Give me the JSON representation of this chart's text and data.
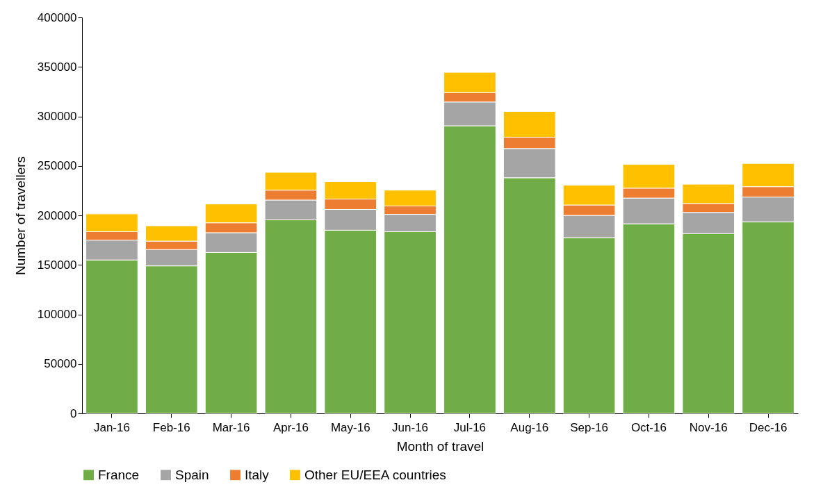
{
  "chart_data": {
    "type": "bar",
    "stacked": true,
    "xlabel": "Month of travel",
    "ylabel": "Number of travellers",
    "categories": [
      "Jan-16",
      "Feb-16",
      "Mar-16",
      "Apr-16",
      "May-16",
      "Jun-16",
      "Jul-16",
      "Aug-16",
      "Sep-16",
      "Oct-16",
      "Nov-16",
      "Dec-16"
    ],
    "series": [
      {
        "name": "France",
        "color": "#70ad47",
        "values": [
          155000,
          149000,
          162500,
          195500,
          185000,
          183500,
          290500,
          238000,
          177500,
          191500,
          181500,
          193500
        ]
      },
      {
        "name": "Spain",
        "color": "#a5a5a5",
        "values": [
          20000,
          16500,
          20000,
          20000,
          21000,
          17500,
          24000,
          29500,
          22500,
          26000,
          21500,
          25000
        ]
      },
      {
        "name": "Italy",
        "color": "#ed7d31",
        "values": [
          8500,
          8500,
          10000,
          10000,
          10500,
          8500,
          9500,
          11500,
          10500,
          10000,
          9000,
          10500
        ]
      },
      {
        "name": "Other EU/EEA countries",
        "color": "#ffc000",
        "values": [
          18000,
          15500,
          19000,
          18000,
          17500,
          16000,
          20500,
          26000,
          20000,
          24000,
          19500,
          23500
        ]
      }
    ],
    "ylim": [
      0,
      400000
    ],
    "yticks": [
      0,
      50000,
      100000,
      150000,
      200000,
      250000,
      300000,
      350000,
      400000
    ],
    "grid": false,
    "legend": "bottom"
  }
}
